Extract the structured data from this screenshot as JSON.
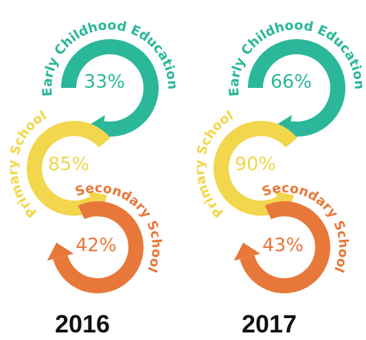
{
  "panels": [
    {
      "year": "2016",
      "stages": [
        {
          "label": "Early Childhood Education",
          "value": "33%"
        },
        {
          "label": "Primary School",
          "value": "85%"
        },
        {
          "label": "Secondary School",
          "value": "42%"
        }
      ]
    },
    {
      "year": "2017",
      "stages": [
        {
          "label": "Early Childhood Education",
          "value": "66%"
        },
        {
          "label": "Primary School",
          "value": "90%"
        },
        {
          "label": "Secondary School",
          "value": "43%"
        }
      ]
    }
  ]
}
